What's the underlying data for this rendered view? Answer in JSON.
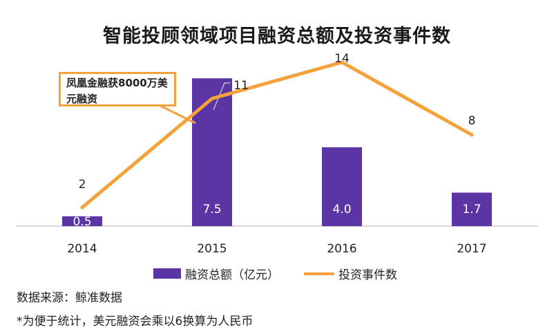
{
  "title": "智能投顾领域项目融资总额及投资事件数",
  "callout": "凤凰金融获8000万美元融资",
  "source": "数据来源：鲸准数据",
  "footnote": "*为便于统计，美元融资会乘以6换算为人民币",
  "colors": {
    "bar": "#5b35a4",
    "line": "#f5a13c",
    "axis": "#cccccc"
  },
  "chart_data": {
    "type": "bar+line",
    "categories": [
      "2014",
      "2015",
      "2016",
      "2017"
    ],
    "series": [
      {
        "name": "融资总额（亿元）",
        "type": "bar",
        "values": [
          0.5,
          7.5,
          4.0,
          1.7
        ],
        "labels": [
          "0.5",
          "7.5",
          "4.0",
          "1.7"
        ]
      },
      {
        "name": "投资事件数",
        "type": "line",
        "values": [
          2,
          11,
          14,
          8
        ],
        "labels": [
          "2",
          "11",
          "14",
          "8"
        ]
      }
    ],
    "legend_position": "bottom",
    "grid": false
  }
}
